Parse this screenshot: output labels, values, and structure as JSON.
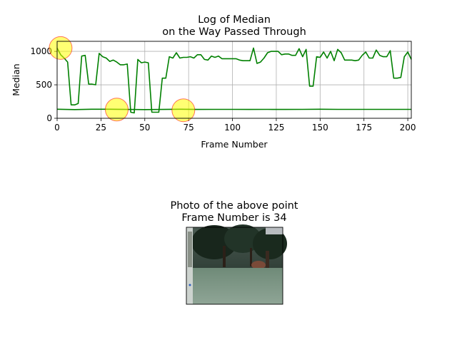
{
  "chart_data": [
    {
      "type": "line",
      "title": "Log of Median\non the Way Passed Through",
      "xlabel": "Frame Number",
      "ylabel": "Median",
      "xlim": [
        0,
        202
      ],
      "ylim": [
        0,
        1150
      ],
      "xticks": [
        0,
        25,
        50,
        75,
        100,
        125,
        150,
        175,
        200
      ],
      "yticks": [
        0,
        500,
        1000
      ],
      "grid": true,
      "line_color": "#008000",
      "series": [
        {
          "x": [
            0,
            2,
            4,
            6,
            8,
            10,
            12,
            14,
            16,
            18,
            20,
            22,
            24,
            26,
            28,
            30,
            32,
            34,
            36,
            38,
            40,
            42,
            44,
            46,
            48,
            50,
            52,
            54,
            56,
            58,
            60,
            62,
            64,
            66,
            68,
            70,
            72,
            74,
            76,
            78,
            80,
            82,
            84,
            86,
            88,
            90,
            92,
            94,
            96,
            98,
            100,
            102,
            104,
            106,
            108,
            110,
            112,
            114,
            116,
            118,
            120,
            122,
            124,
            126,
            128,
            130,
            132,
            134,
            136,
            138,
            140,
            142,
            144,
            146,
            148,
            150,
            152,
            154,
            156,
            158,
            160,
            162,
            164,
            166,
            168,
            170,
            172,
            174,
            176,
            178,
            180,
            182,
            184,
            186,
            188,
            190,
            192,
            194,
            196,
            198,
            200,
            202
          ],
          "values": [
            1050,
            950,
            900,
            840,
            200,
            200,
            220,
            930,
            940,
            510,
            510,
            500,
            970,
            920,
            900,
            850,
            870,
            840,
            800,
            800,
            810,
            90,
            80,
            880,
            830,
            840,
            830,
            90,
            90,
            90,
            600,
            600,
            920,
            900,
            980,
            900,
            910,
            910,
            920,
            900,
            950,
            950,
            880,
            870,
            930,
            910,
            930,
            890,
            890,
            890,
            890,
            890,
            870,
            860,
            860,
            860,
            1050,
            820,
            840,
            900,
            980,
            1000,
            1000,
            1000,
            950,
            960,
            960,
            940,
            940,
            1040,
            920,
            1030,
            480,
            480,
            920,
            910,
            990,
            900,
            1000,
            860,
            1030,
            980,
            870,
            870,
            870,
            860,
            870,
            940,
            990,
            900,
            900,
            1020,
            940,
            920,
            920,
            1010,
            600,
            600,
            610,
            920,
            990,
            880
          ]
        },
        {
          "x": [
            0,
            10,
            20,
            30,
            40,
            50,
            60,
            70,
            80,
            90,
            100,
            110,
            120,
            130,
            140,
            150,
            160,
            170,
            180,
            190,
            202
          ],
          "values": [
            135,
            130,
            135,
            135,
            132,
            130,
            132,
            135,
            132,
            133,
            133,
            132,
            133,
            132,
            133,
            135,
            133,
            133,
            133,
            133,
            133
          ]
        }
      ],
      "highlight_points": [
        {
          "x": 2,
          "y": 1050
        },
        {
          "x": 34,
          "y": 130
        },
        {
          "x": 72,
          "y": 120
        }
      ],
      "highlight_fill": "#ffff00",
      "highlight_edge": "#ff0000"
    },
    {
      "type": "image",
      "title": "Photo of the above point\nFrame Number is 34"
    }
  ]
}
